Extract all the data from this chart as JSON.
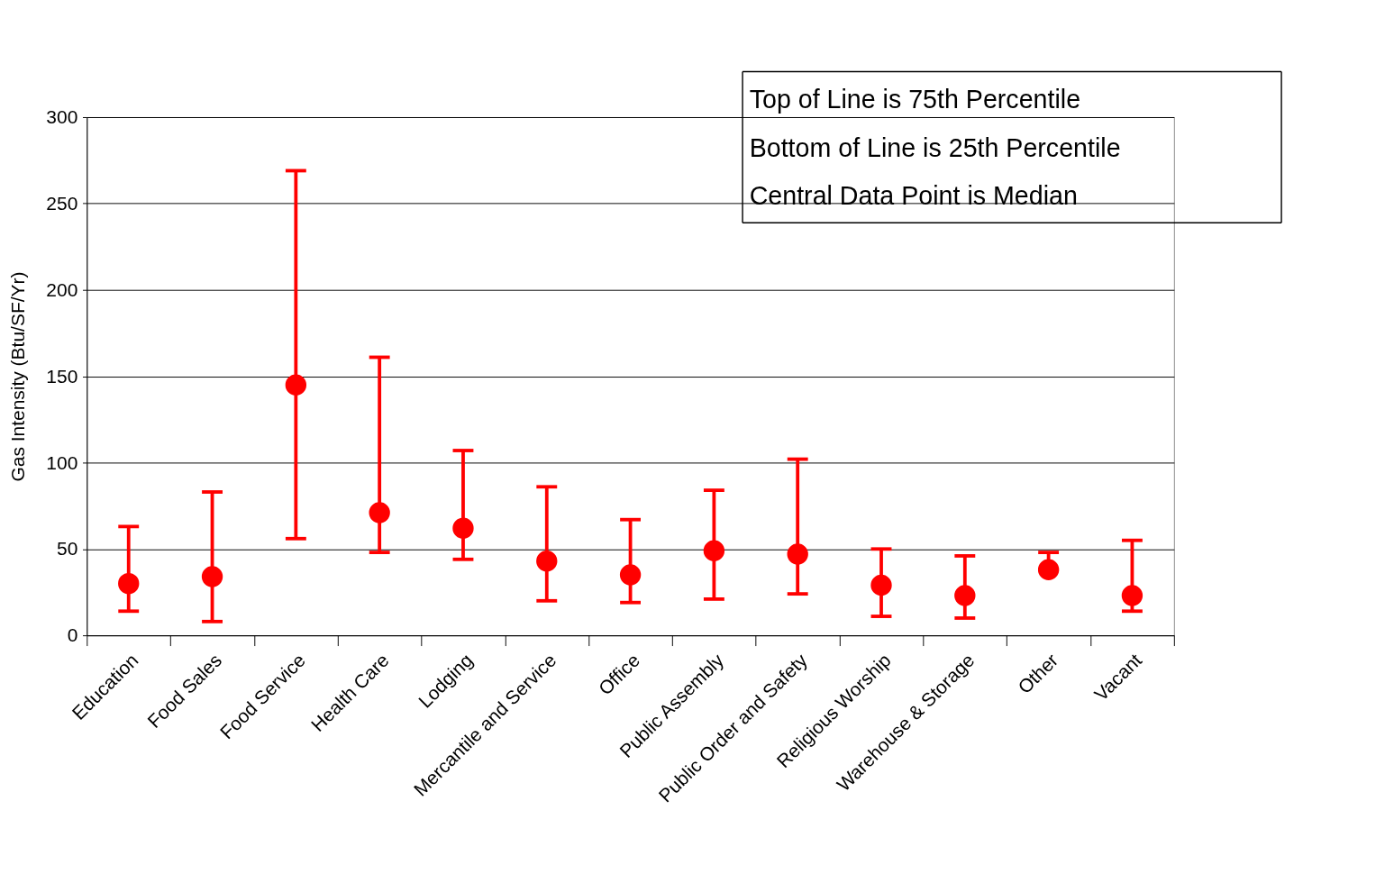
{
  "chart_data": {
    "type": "scatter",
    "ylabel": "Gas Intensity (Btu/SF/Yr)",
    "categories": [
      "Education",
      "Food Sales",
      "Food Service",
      "Health Care",
      "Lodging",
      "Mercantile and Service",
      "Office",
      "Public Assembly",
      "Public Order and Safety",
      "Religious Worship",
      "Warehouse & Storage",
      "Other",
      "Vacant"
    ],
    "series": [
      {
        "color": "#ff0000",
        "values": [
          30,
          34,
          145,
          71,
          62,
          43,
          35,
          49,
          47,
          29,
          23,
          38,
          23
        ],
        "errors": [
          [
            14,
            63
          ],
          [
            8,
            83
          ],
          [
            56,
            269
          ],
          [
            48,
            161
          ],
          [
            44,
            107
          ],
          [
            20,
            86
          ],
          [
            19,
            67
          ],
          [
            21,
            84
          ],
          [
            24,
            102
          ],
          [
            11,
            50
          ],
          [
            10,
            46
          ],
          [
            38,
            48
          ],
          [
            14,
            55
          ]
        ]
      }
    ],
    "ylim": [
      0,
      300
    ],
    "yticks": [
      0,
      50,
      100,
      150,
      200,
      250,
      300
    ],
    "grid": "y",
    "marker": "circle",
    "legend": false,
    "annotations": [
      "Top of Line is 75th Percentile",
      "Bottom of Line is 25th Percentile",
      "Central Data Point is Median"
    ]
  }
}
